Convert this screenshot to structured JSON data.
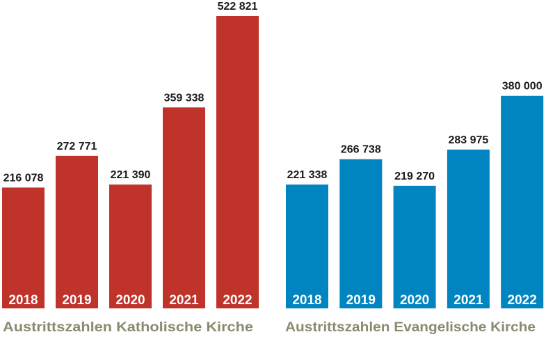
{
  "chart_data": [
    {
      "type": "bar",
      "title": "Austrittszahlen Katholische Kirche",
      "categories": [
        "2018",
        "2019",
        "2020",
        "2021",
        "2022"
      ],
      "values": [
        216078,
        272771,
        221390,
        359338,
        522821
      ],
      "value_labels": [
        "216 078",
        "272 771",
        "221 390",
        "359 338",
        "522 821"
      ],
      "ylim": [
        0,
        522821
      ],
      "grid": false,
      "bar_color": "#c0332b",
      "title_color": "#8c8a6e"
    },
    {
      "type": "bar",
      "title": "Austrittszahlen Evangelische Kirche",
      "categories": [
        "2018",
        "2019",
        "2020",
        "2021",
        "2022"
      ],
      "values": [
        221338,
        266738,
        219270,
        283975,
        380000
      ],
      "value_labels": [
        "221 338",
        "266 738",
        "219 270",
        "283 975",
        "380 000"
      ],
      "ylim": [
        0,
        522821
      ],
      "grid": false,
      "bar_color": "#0085c0",
      "title_color": "#8c8a6e"
    }
  ]
}
